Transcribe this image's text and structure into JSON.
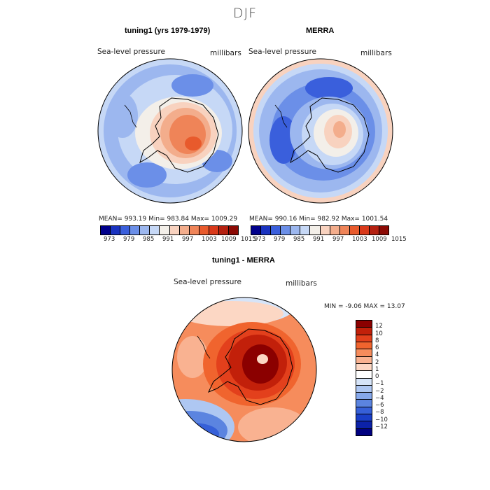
{
  "season": "DJF",
  "panels": {
    "model": {
      "title": "tuning1 (yrs 1979-1979)",
      "variable": "Sea-level pressure",
      "units": "millibars",
      "stats": "MEAN= 993.19  Min= 983.84  Max= 1009.29"
    },
    "obs": {
      "title": "MERRA",
      "variable": "Sea-level pressure",
      "units": "millibars",
      "stats": "MEAN= 990.16  Min= 982.92  Max= 1001.54"
    },
    "diff": {
      "title": "tuning1 - MERRA",
      "variable": "Sea-level pressure",
      "units": "millibars",
      "stats": "MIN =  -9.06 MAX =  13.07"
    }
  },
  "abs_colorbar": {
    "colors": [
      "#00008b",
      "#1a33c0",
      "#3a5fdc",
      "#6b8fe8",
      "#9cb7ef",
      "#c6d8f6",
      "#f3efe9",
      "#f8d2bf",
      "#f3ad8c",
      "#ef8458",
      "#e85a2c",
      "#d9391a",
      "#b42010",
      "#8b0a05"
    ],
    "labels": [
      "973",
      "979",
      "985",
      "991",
      "997",
      "1003",
      "1009",
      "1015"
    ]
  },
  "diff_colorbar": {
    "colors": [
      "#8b0000",
      "#c2200a",
      "#e3401c",
      "#f0642e",
      "#f68c5c",
      "#f9b291",
      "#fcd7c4",
      "#ffffff",
      "#d6e4f8",
      "#aec7f2",
      "#86a8eb",
      "#5b84e0",
      "#3660d8",
      "#1a3fc8",
      "#0c22a8",
      "#000080"
    ],
    "labels": [
      "12",
      "10",
      "8",
      "6",
      "4",
      "2",
      "1",
      "0",
      "−1",
      "−2",
      "−4",
      "−6",
      "−8",
      "−10",
      "−12"
    ]
  }
}
